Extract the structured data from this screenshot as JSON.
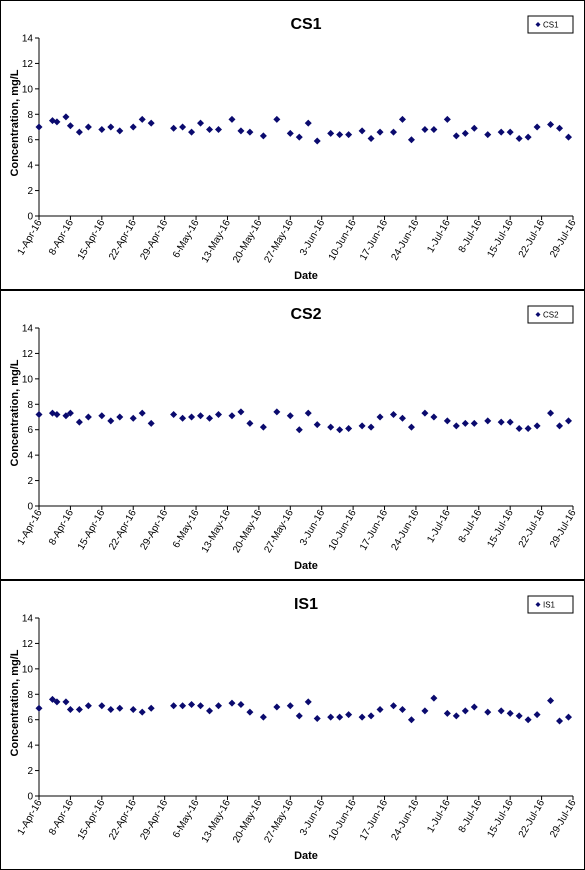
{
  "chart_data": [
    {
      "type": "scatter",
      "title": "CS1",
      "xlabel": "Date",
      "ylabel": "Concentration, mg/L",
      "ylim": [
        0,
        14
      ],
      "yticks": [
        "0",
        "2",
        "4",
        "6",
        "8",
        "10",
        "12",
        "14"
      ],
      "xlim": [
        "2016-04-01",
        "2016-07-29"
      ],
      "xticks": [
        "1-Apr-16",
        "8-Apr-16",
        "15-Apr-16",
        "22-Apr-16",
        "29-Apr-16",
        "6-May-16",
        "13-May-16",
        "20-May-16",
        "27-May-16",
        "3-Jun-16",
        "10-Jun-16",
        "17-Jun-16",
        "24-Jun-16",
        "1-Jul-16",
        "8-Jul-16",
        "15-Jul-16",
        "22-Jul-16",
        "29-Jul-16"
      ],
      "grid": false,
      "legend_position": "top-right",
      "marker_color": "#0a0a6e",
      "series": [
        {
          "name": "CS1",
          "points": [
            [
              "2016-04-01",
              7.0
            ],
            [
              "2016-04-04",
              7.5
            ],
            [
              "2016-04-05",
              7.4
            ],
            [
              "2016-04-07",
              7.8
            ],
            [
              "2016-04-08",
              7.1
            ],
            [
              "2016-04-10",
              6.6
            ],
            [
              "2016-04-12",
              7.0
            ],
            [
              "2016-04-15",
              6.8
            ],
            [
              "2016-04-17",
              7.0
            ],
            [
              "2016-04-19",
              6.7
            ],
            [
              "2016-04-22",
              7.0
            ],
            [
              "2016-04-24",
              7.6
            ],
            [
              "2016-04-26",
              7.3
            ],
            [
              "2016-05-01",
              6.9
            ],
            [
              "2016-05-03",
              7.0
            ],
            [
              "2016-05-05",
              6.6
            ],
            [
              "2016-05-07",
              7.3
            ],
            [
              "2016-05-09",
              6.8
            ],
            [
              "2016-05-11",
              6.8
            ],
            [
              "2016-05-14",
              7.6
            ],
            [
              "2016-05-16",
              6.7
            ],
            [
              "2016-05-18",
              6.6
            ],
            [
              "2016-05-21",
              6.3
            ],
            [
              "2016-05-24",
              7.6
            ],
            [
              "2016-05-27",
              6.5
            ],
            [
              "2016-05-29",
              6.2
            ],
            [
              "2016-05-31",
              7.3
            ],
            [
              "2016-06-02",
              5.9
            ],
            [
              "2016-06-05",
              6.5
            ],
            [
              "2016-06-07",
              6.4
            ],
            [
              "2016-06-09",
              6.4
            ],
            [
              "2016-06-12",
              6.7
            ],
            [
              "2016-06-14",
              6.1
            ],
            [
              "2016-06-16",
              6.6
            ],
            [
              "2016-06-19",
              6.6
            ],
            [
              "2016-06-21",
              7.6
            ],
            [
              "2016-06-23",
              6.0
            ],
            [
              "2016-06-26",
              6.8
            ],
            [
              "2016-06-28",
              6.8
            ],
            [
              "2016-07-01",
              7.6
            ],
            [
              "2016-07-03",
              6.3
            ],
            [
              "2016-07-05",
              6.5
            ],
            [
              "2016-07-07",
              6.9
            ],
            [
              "2016-07-10",
              6.4
            ],
            [
              "2016-07-13",
              6.6
            ],
            [
              "2016-07-15",
              6.6
            ],
            [
              "2016-07-17",
              6.1
            ],
            [
              "2016-07-19",
              6.2
            ],
            [
              "2016-07-21",
              7.0
            ],
            [
              "2016-07-24",
              7.2
            ],
            [
              "2016-07-26",
              6.9
            ],
            [
              "2016-07-28",
              6.2
            ]
          ]
        }
      ]
    },
    {
      "type": "scatter",
      "title": "CS2",
      "xlabel": "Date",
      "ylabel": "Concentration, mg/L",
      "ylim": [
        0,
        14
      ],
      "yticks": [
        "0",
        "2",
        "4",
        "6",
        "8",
        "10",
        "12",
        "14"
      ],
      "xlim": [
        "2016-04-01",
        "2016-07-29"
      ],
      "xticks": [
        "1-Apr-16",
        "8-Apr-16",
        "15-Apr-16",
        "22-Apr-16",
        "29-Apr-16",
        "6-May-16",
        "13-May-16",
        "20-May-16",
        "27-May-16",
        "3-Jun-16",
        "10-Jun-16",
        "17-Jun-16",
        "24-Jun-16",
        "1-Jul-16",
        "8-Jul-16",
        "15-Jul-16",
        "22-Jul-16",
        "29-Jul-16"
      ],
      "grid": false,
      "legend_position": "top-right",
      "marker_color": "#0a0a6e",
      "series": [
        {
          "name": "CS2",
          "points": [
            [
              "2016-04-01",
              7.2
            ],
            [
              "2016-04-04",
              7.3
            ],
            [
              "2016-04-05",
              7.2
            ],
            [
              "2016-04-07",
              7.1
            ],
            [
              "2016-04-08",
              7.3
            ],
            [
              "2016-04-10",
              6.6
            ],
            [
              "2016-04-12",
              7.0
            ],
            [
              "2016-04-15",
              7.1
            ],
            [
              "2016-04-17",
              6.7
            ],
            [
              "2016-04-19",
              7.0
            ],
            [
              "2016-04-22",
              6.9
            ],
            [
              "2016-04-24",
              7.3
            ],
            [
              "2016-04-26",
              6.5
            ],
            [
              "2016-05-01",
              7.2
            ],
            [
              "2016-05-03",
              6.9
            ],
            [
              "2016-05-05",
              7.0
            ],
            [
              "2016-05-07",
              7.1
            ],
            [
              "2016-05-09",
              6.9
            ],
            [
              "2016-05-11",
              7.2
            ],
            [
              "2016-05-14",
              7.1
            ],
            [
              "2016-05-16",
              7.4
            ],
            [
              "2016-05-18",
              6.5
            ],
            [
              "2016-05-21",
              6.2
            ],
            [
              "2016-05-24",
              7.4
            ],
            [
              "2016-05-27",
              7.1
            ],
            [
              "2016-05-29",
              6.0
            ],
            [
              "2016-05-31",
              7.3
            ],
            [
              "2016-06-02",
              6.4
            ],
            [
              "2016-06-05",
              6.2
            ],
            [
              "2016-06-07",
              6.0
            ],
            [
              "2016-06-09",
              6.1
            ],
            [
              "2016-06-12",
              6.3
            ],
            [
              "2016-06-14",
              6.2
            ],
            [
              "2016-06-16",
              7.0
            ],
            [
              "2016-06-19",
              7.2
            ],
            [
              "2016-06-21",
              6.9
            ],
            [
              "2016-06-23",
              6.2
            ],
            [
              "2016-06-26",
              7.3
            ],
            [
              "2016-06-28",
              7.0
            ],
            [
              "2016-07-01",
              6.7
            ],
            [
              "2016-07-03",
              6.3
            ],
            [
              "2016-07-05",
              6.5
            ],
            [
              "2016-07-07",
              6.5
            ],
            [
              "2016-07-10",
              6.7
            ],
            [
              "2016-07-13",
              6.6
            ],
            [
              "2016-07-15",
              6.6
            ],
            [
              "2016-07-17",
              6.1
            ],
            [
              "2016-07-19",
              6.1
            ],
            [
              "2016-07-21",
              6.3
            ],
            [
              "2016-07-24",
              7.3
            ],
            [
              "2016-07-26",
              6.3
            ],
            [
              "2016-07-28",
              6.7
            ]
          ]
        }
      ]
    },
    {
      "type": "scatter",
      "title": "IS1",
      "xlabel": "Date",
      "ylabel": "Concentration, mg/L",
      "ylim": [
        0,
        14
      ],
      "yticks": [
        "0",
        "2",
        "4",
        "6",
        "8",
        "10",
        "12",
        "14"
      ],
      "xlim": [
        "2016-04-01",
        "2016-07-29"
      ],
      "xticks": [
        "1-Apr-16",
        "8-Apr-16",
        "15-Apr-16",
        "22-Apr-16",
        "29-Apr-16",
        "6-May-16",
        "13-May-16",
        "20-May-16",
        "27-May-16",
        "3-Jun-16",
        "10-Jun-16",
        "17-Jun-16",
        "24-Jun-16",
        "1-Jul-16",
        "8-Jul-16",
        "15-Jul-16",
        "22-Jul-16",
        "29-Jul-16"
      ],
      "grid": false,
      "legend_position": "top-right",
      "marker_color": "#0a0a6e",
      "series": [
        {
          "name": "IS1",
          "points": [
            [
              "2016-04-01",
              6.9
            ],
            [
              "2016-04-04",
              7.6
            ],
            [
              "2016-04-05",
              7.4
            ],
            [
              "2016-04-07",
              7.4
            ],
            [
              "2016-04-08",
              6.8
            ],
            [
              "2016-04-10",
              6.8
            ],
            [
              "2016-04-12",
              7.1
            ],
            [
              "2016-04-15",
              7.1
            ],
            [
              "2016-04-17",
              6.8
            ],
            [
              "2016-04-19",
              6.9
            ],
            [
              "2016-04-22",
              6.8
            ],
            [
              "2016-04-24",
              6.6
            ],
            [
              "2016-04-26",
              6.9
            ],
            [
              "2016-05-01",
              7.1
            ],
            [
              "2016-05-03",
              7.1
            ],
            [
              "2016-05-05",
              7.2
            ],
            [
              "2016-05-07",
              7.1
            ],
            [
              "2016-05-09",
              6.7
            ],
            [
              "2016-05-11",
              7.1
            ],
            [
              "2016-05-14",
              7.3
            ],
            [
              "2016-05-16",
              7.2
            ],
            [
              "2016-05-18",
              6.6
            ],
            [
              "2016-05-21",
              6.2
            ],
            [
              "2016-05-24",
              7.0
            ],
            [
              "2016-05-27",
              7.1
            ],
            [
              "2016-05-29",
              6.3
            ],
            [
              "2016-05-31",
              7.4
            ],
            [
              "2016-06-02",
              6.1
            ],
            [
              "2016-06-05",
              6.2
            ],
            [
              "2016-06-07",
              6.2
            ],
            [
              "2016-06-09",
              6.4
            ],
            [
              "2016-06-12",
              6.2
            ],
            [
              "2016-06-14",
              6.3
            ],
            [
              "2016-06-16",
              6.8
            ],
            [
              "2016-06-19",
              7.1
            ],
            [
              "2016-06-21",
              6.8
            ],
            [
              "2016-06-23",
              6.0
            ],
            [
              "2016-06-26",
              6.7
            ],
            [
              "2016-06-28",
              7.7
            ],
            [
              "2016-07-01",
              6.5
            ],
            [
              "2016-07-03",
              6.3
            ],
            [
              "2016-07-05",
              6.7
            ],
            [
              "2016-07-07",
              7.0
            ],
            [
              "2016-07-10",
              6.6
            ],
            [
              "2016-07-13",
              6.7
            ],
            [
              "2016-07-15",
              6.5
            ],
            [
              "2016-07-17",
              6.3
            ],
            [
              "2016-07-19",
              6.0
            ],
            [
              "2016-07-21",
              6.4
            ],
            [
              "2016-07-24",
              7.5
            ],
            [
              "2016-07-26",
              5.9
            ],
            [
              "2016-07-28",
              6.2
            ]
          ]
        }
      ]
    }
  ]
}
